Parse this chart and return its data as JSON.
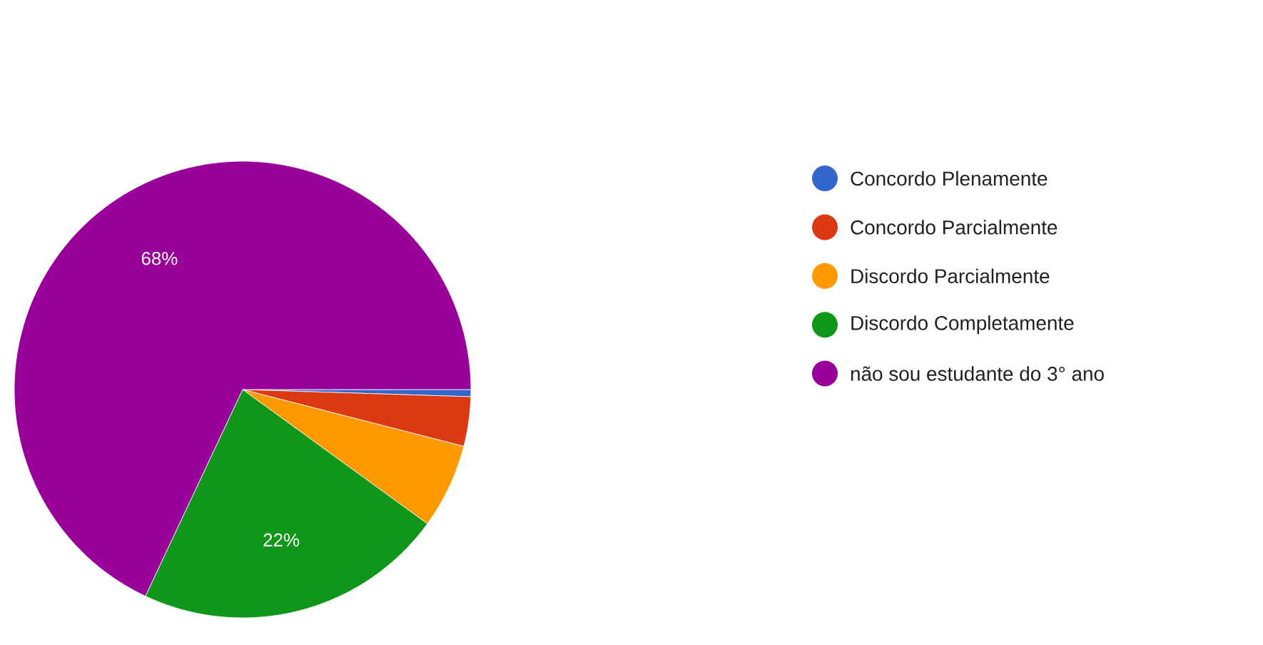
{
  "chart_data": {
    "type": "pie",
    "categories": [
      "Concordo Plenamente",
      "Concordo Parcialmente",
      "Discordo Parcialmente",
      "Discordo Completamente",
      "não sou estudante do 3° ano"
    ],
    "values": [
      0.5,
      3.5,
      6,
      22,
      68
    ],
    "colors": [
      "#3366cc",
      "#dc3912",
      "#ff9900",
      "#109618",
      "#990099"
    ],
    "value_labels": [
      null,
      null,
      null,
      "22%",
      "68%"
    ],
    "legend": "right"
  }
}
